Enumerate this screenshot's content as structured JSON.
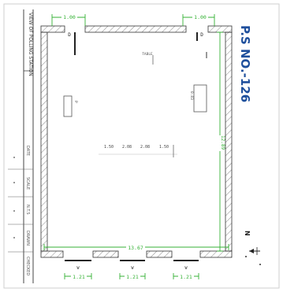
{
  "title": "P.S NO.-126",
  "title_block": {
    "header_text": "VIEW OF POLLING STATION",
    "row_labels": [
      "DATE",
      "SCALE",
      "N.T.S",
      "DRAWN",
      "CHECKED"
    ]
  },
  "dimensions": {
    "top_left_door": "1.00",
    "top_right_door": "1.00",
    "right_wall": "12.89",
    "bottom_width": "13.67",
    "bottom_doors": [
      "1.21",
      "1.21",
      "1.21"
    ]
  },
  "labels": {
    "top_left_d": "D",
    "top_right_d": "D",
    "top_center": "TABLE",
    "bottom_door_codes": [
      "W",
      "W",
      "W"
    ],
    "table_row": [
      "1.50",
      "2.08",
      "2.08",
      "1.50"
    ],
    "right_box": "0.83",
    "left_box": "P"
  },
  "north": {
    "label": "N"
  },
  "colors": {
    "accent_title": "#1e4f9c",
    "dimension": "#35b235",
    "wall": "#333333",
    "hatch": "#8a8a8a"
  }
}
